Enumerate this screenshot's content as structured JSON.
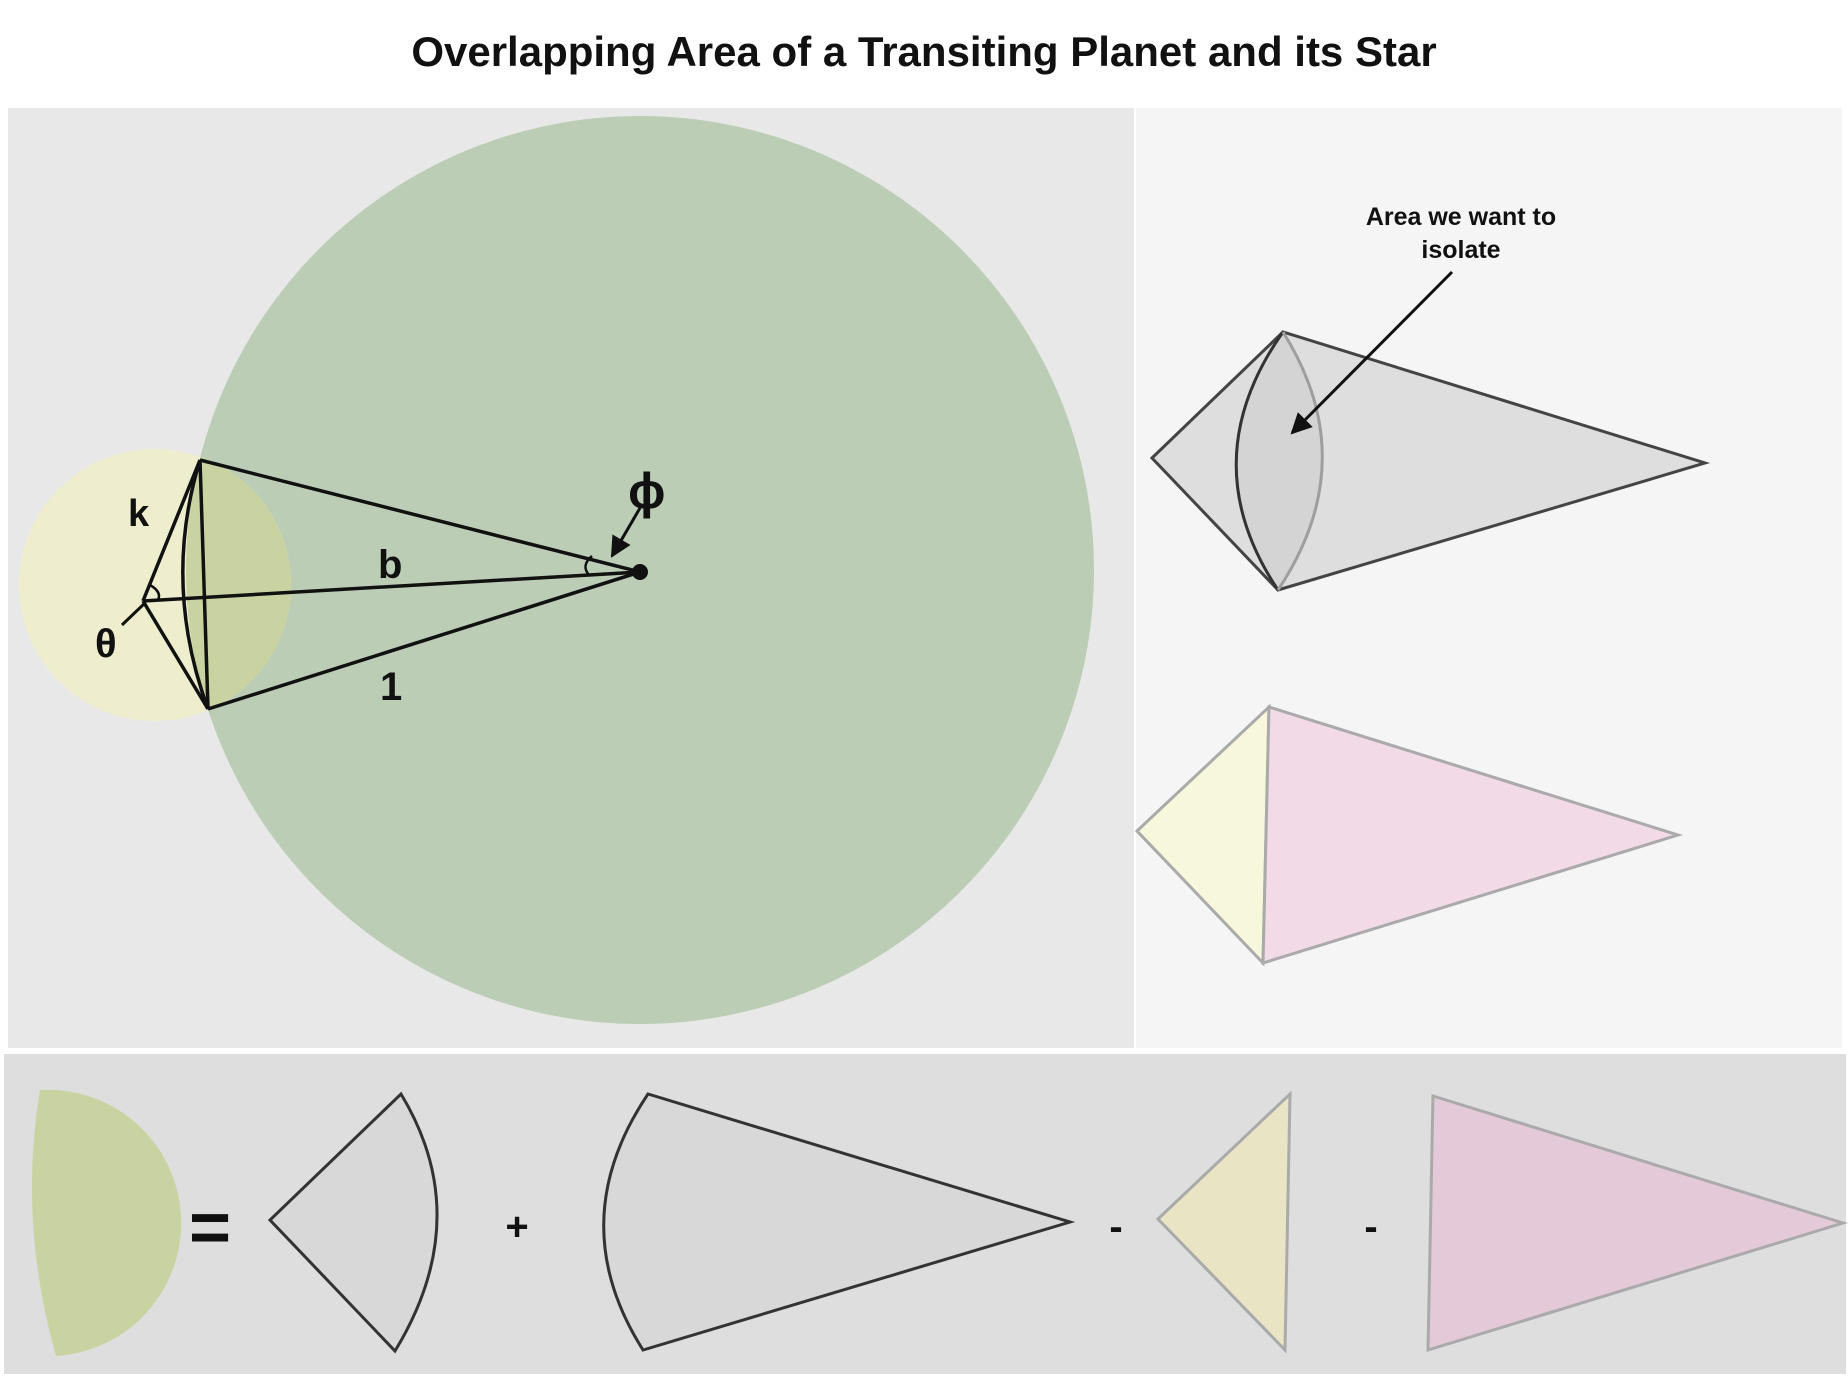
{
  "title": "Overlapping Area of a Transiting Planet and its Star",
  "labels": {
    "k": "k",
    "b": "b",
    "one": "1",
    "theta": "θ",
    "phi": "ϕ"
  },
  "callout": {
    "line1": "Area we want to",
    "line2": "isolate"
  },
  "equation": {
    "equals": "=",
    "plus": "+",
    "minus1": "-",
    "minus2": "-"
  },
  "colors": {
    "panel_main_bg": "#e8e8e8",
    "panel_right_bg": "#f5f5f5",
    "panel_bottom_bg": "#dedede",
    "star_fill": "#bccdb6",
    "planet_fill": "#eeeecf",
    "overlap_fill": "#c9d3a1",
    "sector_gray": "#d8d8d8",
    "triangle_yellow": "#f7f7db",
    "triangle_pink": "#f2dbe6",
    "bottom_yellow": "#e8e4c4",
    "bottom_pink": "#e4cad8",
    "stroke": "#111111",
    "stroke_gray": "#a8a8a8"
  }
}
